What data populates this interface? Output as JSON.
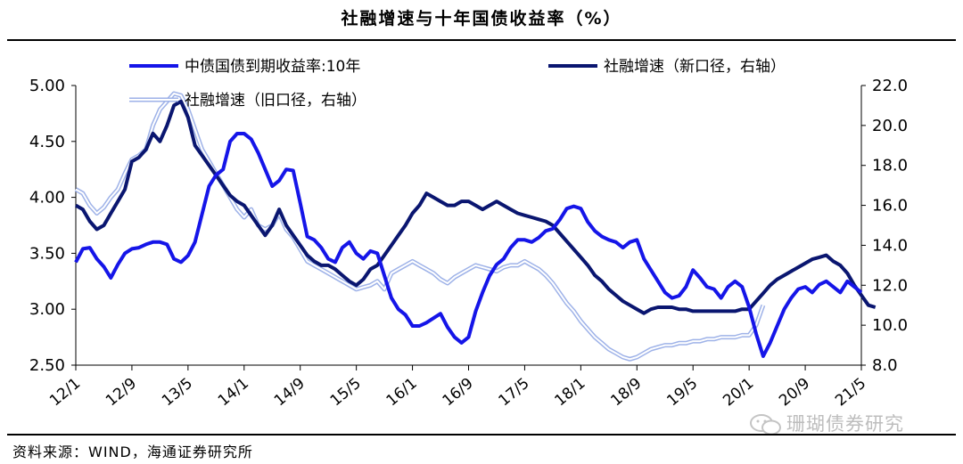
{
  "title": "社融增速与十年国债收益率（%）",
  "source": "资料来源：WIND，海通证券研究所",
  "watermark": "珊瑚债券研究",
  "colors": {
    "yield": "#1515e8",
    "new": "#0a1670",
    "old": "#9eb2e8",
    "oldCore": "#ffffff",
    "axis": "#000000"
  },
  "chart_data": {
    "type": "line",
    "xlabel": "",
    "ylabel_left": "",
    "ylabel_right": "",
    "ylim_left": [
      2.5,
      5.0
    ],
    "ylim_right": [
      8.0,
      22.0
    ],
    "yticks_left": [
      "5.00",
      "4.50",
      "4.00",
      "3.50",
      "3.00",
      "2.50"
    ],
    "yticks_left_values": [
      5.0,
      4.5,
      4.0,
      3.5,
      3.0,
      2.5
    ],
    "yticks_right": [
      "22.0",
      "20.0",
      "18.0",
      "16.0",
      "14.0",
      "12.0",
      "10.0",
      "8.0"
    ],
    "yticks_right_values": [
      22,
      20,
      18,
      16,
      14,
      12,
      10,
      8
    ],
    "xticks": [
      "12/1",
      "12/9",
      "13/5",
      "14/1",
      "14/9",
      "15/5",
      "16/1",
      "16/9",
      "17/5",
      "18/1",
      "18/9",
      "19/5",
      "20/1",
      "20/9",
      "21/5"
    ],
    "xticks_index": [
      0,
      8,
      16,
      24,
      32,
      40,
      48,
      56,
      64,
      72,
      80,
      88,
      96,
      104,
      112
    ],
    "x_range": [
      0,
      112
    ],
    "legend": [
      "中债国债到期收益率:10年",
      "社融增速（新口径，右轴）",
      "社融增速（旧口径，右轴）"
    ],
    "series": [
      {
        "name": "中债国债到期收益率:10年",
        "axis": "left",
        "start_index": 0,
        "values": [
          3.42,
          3.54,
          3.55,
          3.45,
          3.38,
          3.28,
          3.4,
          3.5,
          3.54,
          3.55,
          3.58,
          3.6,
          3.6,
          3.58,
          3.45,
          3.42,
          3.48,
          3.6,
          3.85,
          4.1,
          4.2,
          4.25,
          4.5,
          4.57,
          4.57,
          4.52,
          4.4,
          4.25,
          4.1,
          4.15,
          4.25,
          4.24,
          3.95,
          3.65,
          3.62,
          3.55,
          3.45,
          3.42,
          3.55,
          3.6,
          3.5,
          3.45,
          3.52,
          3.5,
          3.3,
          3.1,
          3.0,
          2.95,
          2.85,
          2.85,
          2.88,
          2.92,
          2.96,
          2.84,
          2.75,
          2.7,
          2.75,
          2.98,
          3.15,
          3.3,
          3.4,
          3.45,
          3.55,
          3.62,
          3.62,
          3.6,
          3.64,
          3.7,
          3.72,
          3.8,
          3.9,
          3.92,
          3.9,
          3.78,
          3.7,
          3.65,
          3.62,
          3.6,
          3.55,
          3.6,
          3.62,
          3.45,
          3.35,
          3.25,
          3.15,
          3.1,
          3.12,
          3.2,
          3.35,
          3.28,
          3.2,
          3.18,
          3.1,
          3.2,
          3.25,
          3.2,
          3.02,
          2.78,
          2.58,
          2.7,
          2.85,
          3.0,
          3.1,
          3.18,
          3.2,
          3.15,
          3.22,
          3.25,
          3.2,
          3.15,
          3.25,
          3.2,
          3.15
        ]
      },
      {
        "name": "社融增速（新口径，右轴）",
        "axis": "right",
        "start_index": 0,
        "values": [
          16.0,
          15.8,
          15.2,
          14.8,
          15.0,
          15.6,
          16.2,
          16.8,
          18.2,
          18.4,
          18.8,
          19.6,
          19.2,
          20.0,
          21.0,
          21.2,
          20.4,
          19.0,
          18.5,
          18.0,
          17.5,
          17.0,
          16.5,
          16.2,
          16.0,
          15.5,
          15.0,
          14.5,
          15.0,
          15.8,
          15.0,
          14.5,
          14.0,
          13.5,
          13.2,
          13.0,
          13.0,
          12.8,
          12.5,
          12.2,
          12.0,
          12.3,
          12.8,
          13.0,
          13.5,
          14.0,
          14.5,
          15.0,
          15.6,
          16.0,
          16.6,
          16.4,
          16.2,
          16.0,
          16.0,
          16.2,
          16.2,
          16.0,
          15.8,
          16.0,
          16.2,
          16.0,
          15.8,
          15.6,
          15.5,
          15.4,
          15.3,
          15.2,
          15.0,
          14.6,
          14.2,
          13.8,
          13.4,
          13.0,
          12.5,
          12.2,
          11.8,
          11.5,
          11.2,
          11.0,
          10.8,
          10.6,
          10.8,
          10.9,
          10.9,
          10.9,
          10.8,
          10.8,
          10.7,
          10.7,
          10.7,
          10.7,
          10.7,
          10.7,
          10.7,
          10.8,
          10.8,
          11.2,
          11.6,
          12.0,
          12.3,
          12.5,
          12.7,
          12.9,
          13.1,
          13.3,
          13.4,
          13.5,
          13.2,
          13.0,
          12.6,
          12.0,
          11.5,
          11.0,
          10.9
        ]
      },
      {
        "name": "社融增速（旧口径，右轴）",
        "axis": "right",
        "start_index": 0,
        "values": [
          16.8,
          16.6,
          16.0,
          15.6,
          15.9,
          16.4,
          16.8,
          17.6,
          18.3,
          18.5,
          18.8,
          20.0,
          20.8,
          21.2,
          21.6,
          21.5,
          20.8,
          19.8,
          18.8,
          18.2,
          17.6,
          17.0,
          16.4,
          15.8,
          15.4,
          15.8,
          15.0,
          14.8,
          15.0,
          15.6,
          14.8,
          14.4,
          13.8,
          13.2,
          13.0,
          12.8,
          12.6,
          12.4,
          12.2,
          12.0,
          11.8,
          11.9,
          12.0,
          12.2,
          11.8,
          12.6,
          12.8,
          13.0,
          13.2,
          13.0,
          12.8,
          12.6,
          12.3,
          12.1,
          12.4,
          12.6,
          12.8,
          13.0,
          12.9,
          12.8,
          12.7,
          12.9,
          13.0,
          13.0,
          13.2,
          13.0,
          12.8,
          12.5,
          12.1,
          11.6,
          11.1,
          10.7,
          10.2,
          9.8,
          9.4,
          9.1,
          8.8,
          8.6,
          8.4,
          8.3,
          8.4,
          8.6,
          8.8,
          8.9,
          9.0,
          9.0,
          9.1,
          9.1,
          9.2,
          9.2,
          9.3,
          9.3,
          9.4,
          9.4,
          9.4,
          9.5,
          9.5,
          10.0,
          11.0
        ]
      }
    ]
  }
}
